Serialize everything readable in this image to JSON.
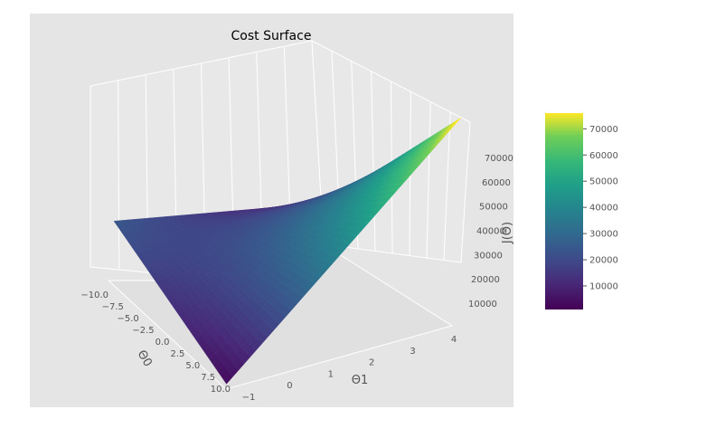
{
  "chart_data": {
    "type": "surface",
    "title": "Cost Surface",
    "xlabel": "Θ0",
    "ylabel": "Θ1",
    "zlabel": "J(Θ)",
    "xlim": [
      -10,
      10
    ],
    "ylim": [
      -1,
      4
    ],
    "zlim": [
      1000,
      78000
    ],
    "x_ticks": [
      "−10.0",
      "−7.5",
      "−5.0",
      "−2.5",
      "0.0",
      "2.5",
      "5.0",
      "7.5",
      "10.0"
    ],
    "y_ticks": [
      "−1",
      "0",
      "1",
      "2",
      "3",
      "4"
    ],
    "z_ticks": [
      "10000",
      "20000",
      "30000",
      "40000",
      "50000",
      "60000",
      "70000"
    ],
    "colorbar": {
      "colormap": "viridis",
      "range": [
        1000,
        76000
      ],
      "ticks": [
        "10000",
        "20000",
        "30000",
        "40000",
        "50000",
        "60000",
        "70000"
      ]
    },
    "surface": {
      "description_free": true,
      "corner_values": {
        "x_min_y_min": 24000,
        "x_min_y_max": 3000,
        "x_max_y_min": 3000,
        "x_max_y_max": 78000
      },
      "minimum": 3000
    },
    "grid": true,
    "background": "#e5e5e5"
  },
  "colors": {
    "pane": "#e5e5e5",
    "grid": "#ffffff",
    "tick_text": "#555555"
  }
}
